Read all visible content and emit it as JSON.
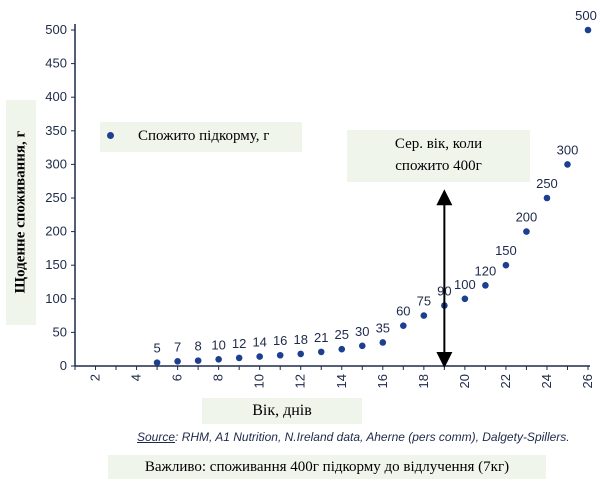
{
  "chart_data": {
    "type": "scatter",
    "ylabel": "Щоденне споживання, г",
    "xlabel": "Вік, днів",
    "x_ticks": [
      "2",
      "4",
      "6",
      "8",
      "10",
      "12",
      "14",
      "16",
      "18",
      "20",
      "22",
      "24",
      "26"
    ],
    "y_ticks": [
      "0",
      "50",
      "100",
      "150",
      "200",
      "250",
      "300",
      "350",
      "400",
      "450",
      "500"
    ],
    "xlim": [
      1,
      26
    ],
    "ylim": [
      0,
      500
    ],
    "grid": false,
    "legend": {
      "position": "top-left"
    },
    "series": [
      {
        "name": "Спожито підкорму, г",
        "color": "#1c3f8f",
        "x": [
          5,
          6,
          7,
          8,
          9,
          10,
          11,
          12,
          13,
          14,
          15,
          16,
          17,
          18,
          19,
          20,
          21,
          22,
          23,
          24,
          25,
          26
        ],
        "y": [
          5,
          7,
          8,
          10,
          12,
          14,
          16,
          18,
          21,
          25,
          30,
          35,
          60,
          75,
          90,
          100,
          120,
          150,
          200,
          250,
          300,
          500
        ],
        "labels": [
          "5",
          "7",
          "8",
          "10",
          "12",
          "14",
          "16",
          "18",
          "21",
          "25",
          "30",
          "35",
          "60",
          "75",
          "90",
          "100",
          "120",
          "150",
          "200",
          "250",
          "300",
          "500"
        ]
      }
    ],
    "annotation": {
      "text_line1": "Сер. вік, коли",
      "text_line2": "спожито 400г",
      "x": 19,
      "y_range": [
        0,
        260
      ]
    },
    "source_prefix": "Source",
    "source_rest": ": RHM, A1 Nutrition, N.Ireland data, Aherne (pers comm), Dalgety-Spillers.",
    "note": "Важливо: споживання 400г підкорму до відлучення (7кг)"
  }
}
